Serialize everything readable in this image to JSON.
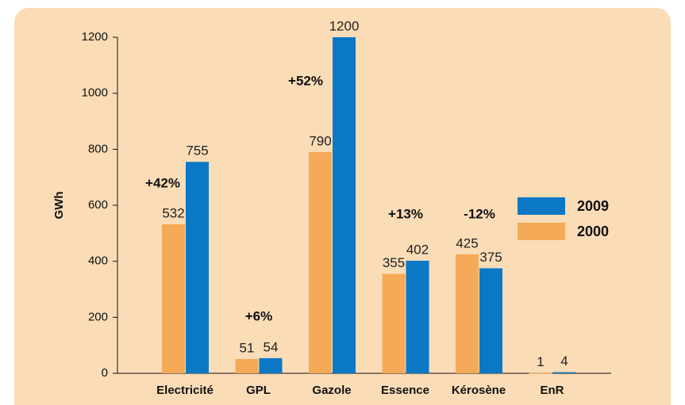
{
  "chart_data": {
    "type": "bar",
    "y_label": "GWh",
    "categories": [
      "Electricité",
      "GPL",
      "Gazole",
      "Essence",
      "Kérosène",
      "EnR"
    ],
    "series": [
      {
        "name": "2000",
        "color": "#f5aa57",
        "values": [
          532,
          51,
          790,
          355,
          425,
          1
        ]
      },
      {
        "name": "2009",
        "color": "#0b78c6",
        "values": [
          755,
          54,
          1200,
          402,
          375,
          4
        ]
      }
    ],
    "annotations": [
      "+42%",
      "+6%",
      "+52%",
      "+13%",
      "-12%"
    ],
    "ylim": [
      0,
      1200
    ],
    "yticks": [
      0,
      200,
      400,
      600,
      800,
      1000,
      1200
    ],
    "grid": false,
    "legend": "right"
  }
}
